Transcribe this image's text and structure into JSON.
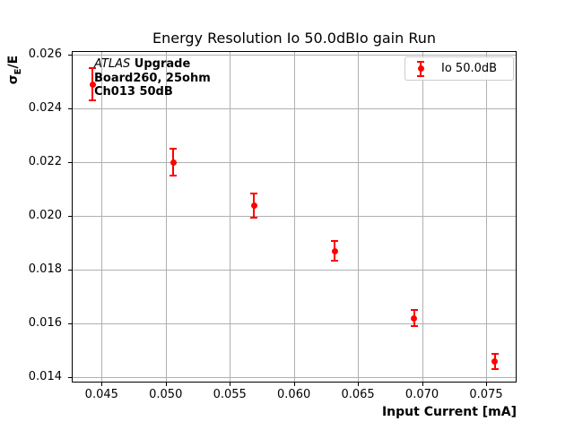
{
  "figure": {
    "background": "#ffffff"
  },
  "chart_data": {
    "type": "scatter",
    "title": "Energy Resolution Io 50.0dBIo gain Run",
    "xlabel": "Input Current [mA]",
    "ylabel": "σE/E",
    "ylabel_parts": {
      "sigma": "σ",
      "sub": "E",
      "rest": "/E"
    },
    "xlim": [
      0.04267,
      0.07738
    ],
    "ylim": [
      0.01381,
      0.0261
    ],
    "xticks": [
      "0.045",
      "0.050",
      "0.055",
      "0.060",
      "0.065",
      "0.070",
      "0.075"
    ],
    "yticks": [
      "0.014",
      "0.016",
      "0.018",
      "0.020",
      "0.022",
      "0.024",
      "0.026"
    ],
    "grid": true,
    "grid_color": "#b0b0b0",
    "spine_color": "#000000",
    "legend_position": "upper right",
    "series": [
      {
        "name": "Io 50.0dB",
        "color": "#ff0000",
        "marker": "o",
        "x": [
          0.0443,
          0.0506,
          0.0569,
          0.0632,
          0.0694,
          0.0757
        ],
        "y": [
          0.0249,
          0.022,
          0.0204,
          0.0187,
          0.0162,
          0.0146
        ],
        "yerr": [
          0.0006,
          0.0005,
          0.00045,
          0.00037,
          0.0003,
          0.00028
        ]
      }
    ],
    "annotation": {
      "line1_italic": "ATLAS",
      "line1_bold": " Upgrade",
      "line2": "Board260, 25ohm",
      "line3": "Ch013 50dB"
    }
  }
}
